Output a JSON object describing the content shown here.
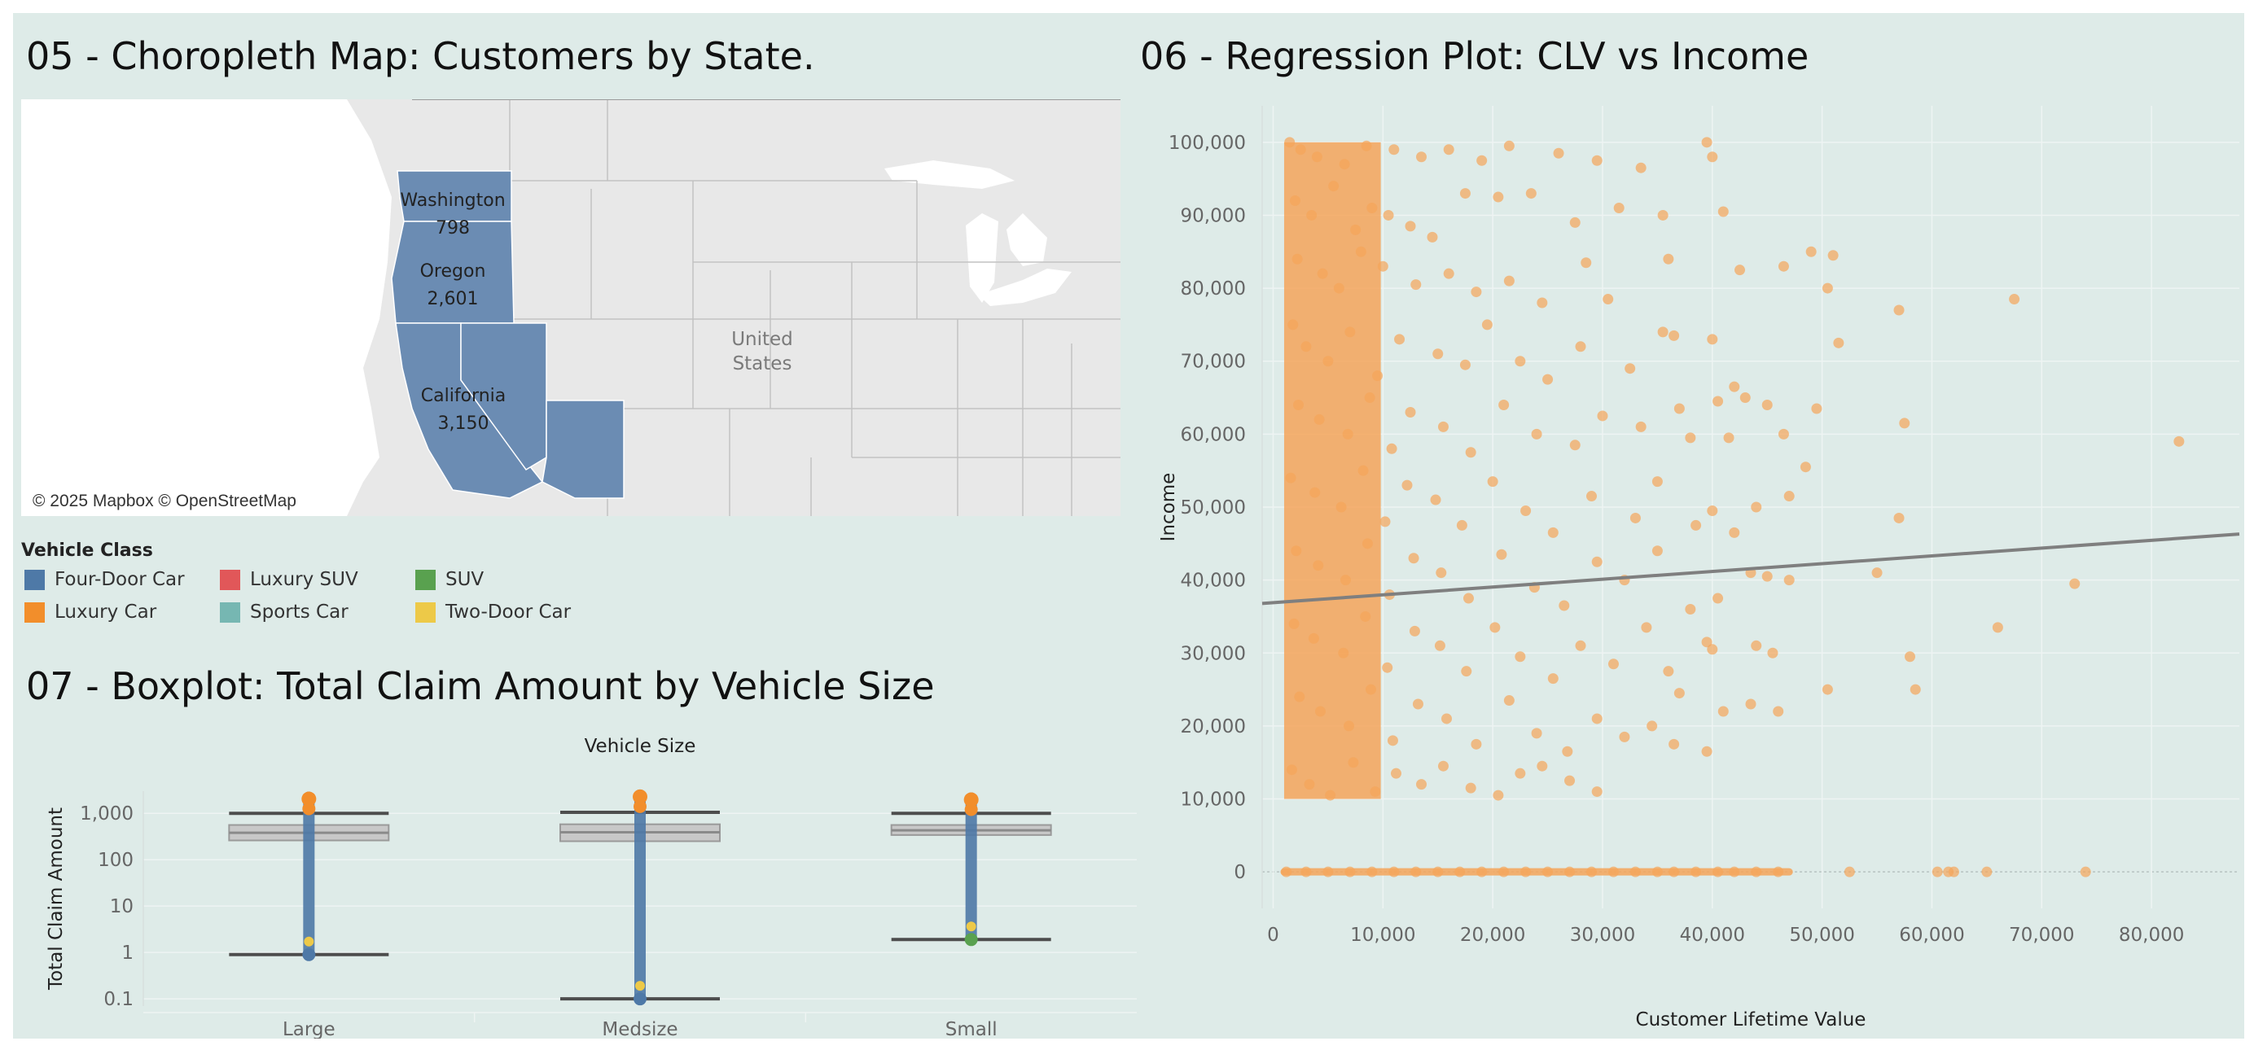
{
  "dashboard": {
    "map_title": "05 - Choropleth Map: Customers by State.",
    "regression_title": "06 - Regression Plot: CLV vs Income",
    "boxplot_title": "07 - Boxplot: Total Claim Amount by Vehicle Size"
  },
  "map": {
    "credit": "© 2025 Mapbox © OpenStreetMap",
    "country_label": "United States",
    "fill_color": "#6b8cb3",
    "states": [
      {
        "name": "Washington",
        "value": "798"
      },
      {
        "name": "Oregon",
        "value": "2,601"
      },
      {
        "name": "California",
        "value": "3,150"
      }
    ]
  },
  "legend": {
    "title": "Vehicle Class",
    "items": [
      {
        "label": "Four-Door Car",
        "color": "#4e79a7"
      },
      {
        "label": "Luxury Car",
        "color": "#f28e2b"
      },
      {
        "label": "Luxury SUV",
        "color": "#e15759"
      },
      {
        "label": "Sports Car",
        "color": "#76b7b2"
      },
      {
        "label": "SUV",
        "color": "#59a14f"
      },
      {
        "label": "Two-Door Car",
        "color": "#edc948"
      }
    ]
  },
  "chart_data": [
    {
      "type": "scatter",
      "title": "06 - Regression Plot: CLV vs Income",
      "xlabel": "Customer Lifetime Value",
      "ylabel": "Income",
      "xlim": [
        -1000,
        88000
      ],
      "ylim": [
        -5000,
        105000
      ],
      "xticks": [
        "0",
        "10,000",
        "20,000",
        "30,000",
        "40,000",
        "50,000",
        "60,000",
        "70,000",
        "80,000"
      ],
      "yticks": [
        "0",
        "10,000",
        "20,000",
        "30,000",
        "40,000",
        "50,000",
        "60,000",
        "70,000",
        "80,000",
        "90,000",
        "100,000"
      ],
      "point_color": "#f5a55a",
      "trend_color": "#7f7f7f",
      "trend_line": {
        "x": [
          -1000,
          88000
        ],
        "y": [
          36800,
          46300
        ]
      },
      "points": [
        [
          1500,
          100000
        ],
        [
          2500,
          99000
        ],
        [
          4000,
          98000
        ],
        [
          6500,
          97000
        ],
        [
          8500,
          99500
        ],
        [
          11000,
          99000
        ],
        [
          13500,
          98000
        ],
        [
          16000,
          99000
        ],
        [
          19000,
          97500
        ],
        [
          21500,
          99500
        ],
        [
          26000,
          98500
        ],
        [
          29500,
          97500
        ],
        [
          33500,
          96500
        ],
        [
          39500,
          100000
        ],
        [
          40000,
          98000
        ],
        [
          2000,
          92000
        ],
        [
          3500,
          90000
        ],
        [
          5500,
          94000
        ],
        [
          7500,
          88000
        ],
        [
          9000,
          91000
        ],
        [
          10500,
          90000
        ],
        [
          12500,
          88500
        ],
        [
          14500,
          87000
        ],
        [
          17500,
          93000
        ],
        [
          20500,
          92500
        ],
        [
          23500,
          93000
        ],
        [
          27500,
          89000
        ],
        [
          31500,
          91000
        ],
        [
          35500,
          90000
        ],
        [
          41000,
          90500
        ],
        [
          2200,
          84000
        ],
        [
          4500,
          82000
        ],
        [
          6000,
          80000
        ],
        [
          8000,
          85000
        ],
        [
          10000,
          83000
        ],
        [
          13000,
          80500
        ],
        [
          16000,
          82000
        ],
        [
          18500,
          79500
        ],
        [
          21500,
          81000
        ],
        [
          24500,
          78000
        ],
        [
          28500,
          83500
        ],
        [
          30500,
          78500
        ],
        [
          36000,
          84000
        ],
        [
          42500,
          82500
        ],
        [
          46500,
          83000
        ],
        [
          49000,
          85000
        ],
        [
          50500,
          80000
        ],
        [
          51000,
          84500
        ],
        [
          51500,
          72500
        ],
        [
          57000,
          77000
        ],
        [
          67500,
          78500
        ],
        [
          1800,
          75000
        ],
        [
          3000,
          72000
        ],
        [
          5000,
          70000
        ],
        [
          7000,
          74000
        ],
        [
          9500,
          68000
        ],
        [
          11500,
          73000
        ],
        [
          15000,
          71000
        ],
        [
          17500,
          69500
        ],
        [
          19500,
          75000
        ],
        [
          22500,
          70000
        ],
        [
          25000,
          67500
        ],
        [
          28000,
          72000
        ],
        [
          32500,
          69000
        ],
        [
          35500,
          74000
        ],
        [
          36500,
          73500
        ],
        [
          40000,
          73000
        ],
        [
          42000,
          66500
        ],
        [
          43000,
          65000
        ],
        [
          2300,
          64000
        ],
        [
          4200,
          62000
        ],
        [
          6800,
          60000
        ],
        [
          8800,
          65000
        ],
        [
          10800,
          58000
        ],
        [
          12500,
          63000
        ],
        [
          15500,
          61000
        ],
        [
          18000,
          57500
        ],
        [
          21000,
          64000
        ],
        [
          24000,
          60000
        ],
        [
          27500,
          58500
        ],
        [
          30000,
          62500
        ],
        [
          33500,
          61000
        ],
        [
          37000,
          63500
        ],
        [
          38000,
          59500
        ],
        [
          40500,
          64500
        ],
        [
          41500,
          59500
        ],
        [
          45000,
          64000
        ],
        [
          46500,
          60000
        ],
        [
          48500,
          55500
        ],
        [
          49500,
          63500
        ],
        [
          57500,
          61500
        ],
        [
          82500,
          59000
        ],
        [
          1600,
          54000
        ],
        [
          3800,
          52000
        ],
        [
          6200,
          50000
        ],
        [
          8200,
          55000
        ],
        [
          10200,
          48000
        ],
        [
          12200,
          53000
        ],
        [
          14800,
          51000
        ],
        [
          17200,
          47500
        ],
        [
          20000,
          53500
        ],
        [
          23000,
          49500
        ],
        [
          25500,
          46500
        ],
        [
          29000,
          51500
        ],
        [
          33000,
          48500
        ],
        [
          35000,
          53500
        ],
        [
          38500,
          47500
        ],
        [
          40000,
          49500
        ],
        [
          42000,
          46500
        ],
        [
          44000,
          50000
        ],
        [
          47000,
          51500
        ],
        [
          57000,
          48500
        ],
        [
          2100,
          44000
        ],
        [
          4100,
          42000
        ],
        [
          6600,
          40000
        ],
        [
          8600,
          45000
        ],
        [
          10600,
          38000
        ],
        [
          12800,
          43000
        ],
        [
          15300,
          41000
        ],
        [
          17800,
          37500
        ],
        [
          20800,
          43500
        ],
        [
          23800,
          39000
        ],
        [
          26500,
          36500
        ],
        [
          29500,
          42500
        ],
        [
          32000,
          40000
        ],
        [
          35000,
          44000
        ],
        [
          38000,
          36000
        ],
        [
          40500,
          37500
        ],
        [
          43500,
          41000
        ],
        [
          45000,
          40500
        ],
        [
          47000,
          40000
        ],
        [
          55000,
          41000
        ],
        [
          73000,
          39500
        ],
        [
          1900,
          34000
        ],
        [
          3700,
          32000
        ],
        [
          6400,
          30000
        ],
        [
          8400,
          35000
        ],
        [
          10400,
          28000
        ],
        [
          12900,
          33000
        ],
        [
          15200,
          31000
        ],
        [
          17600,
          27500
        ],
        [
          20200,
          33500
        ],
        [
          22500,
          29500
        ],
        [
          25500,
          26500
        ],
        [
          28000,
          31000
        ],
        [
          31000,
          28500
        ],
        [
          34000,
          33500
        ],
        [
          36000,
          27500
        ],
        [
          39500,
          31500
        ],
        [
          40000,
          30500
        ],
        [
          44000,
          31000
        ],
        [
          45500,
          30000
        ],
        [
          58000,
          29500
        ],
        [
          66000,
          33500
        ],
        [
          2400,
          24000
        ],
        [
          4300,
          22000
        ],
        [
          6900,
          20000
        ],
        [
          8900,
          25000
        ],
        [
          10900,
          18000
        ],
        [
          13200,
          23000
        ],
        [
          15800,
          21000
        ],
        [
          18500,
          17500
        ],
        [
          21500,
          23500
        ],
        [
          24000,
          19000
        ],
        [
          26800,
          16500
        ],
        [
          29500,
          21000
        ],
        [
          32000,
          18500
        ],
        [
          34500,
          20000
        ],
        [
          36500,
          17500
        ],
        [
          37000,
          24500
        ],
        [
          39500,
          16500
        ],
        [
          41000,
          22000
        ],
        [
          43500,
          23000
        ],
        [
          46000,
          22000
        ],
        [
          50500,
          25000
        ],
        [
          58500,
          25000
        ],
        [
          1700,
          14000
        ],
        [
          3300,
          12000
        ],
        [
          5200,
          10500
        ],
        [
          7300,
          15000
        ],
        [
          9300,
          11000
        ],
        [
          11200,
          13500
        ],
        [
          13500,
          12000
        ],
        [
          15500,
          14500
        ],
        [
          18000,
          11500
        ],
        [
          20500,
          10500
        ],
        [
          22500,
          13500
        ],
        [
          24500,
          14500
        ],
        [
          27000,
          12500
        ],
        [
          29500,
          11000
        ],
        [
          1200,
          0
        ],
        [
          3000,
          0
        ],
        [
          5000,
          0
        ],
        [
          7000,
          0
        ],
        [
          9000,
          0
        ],
        [
          11000,
          0
        ],
        [
          13000,
          0
        ],
        [
          15000,
          0
        ],
        [
          17000,
          0
        ],
        [
          19000,
          0
        ],
        [
          21000,
          0
        ],
        [
          23000,
          0
        ],
        [
          25000,
          0
        ],
        [
          27000,
          0
        ],
        [
          29000,
          0
        ],
        [
          31000,
          0
        ],
        [
          33000,
          0
        ],
        [
          35000,
          0
        ],
        [
          36500,
          0
        ],
        [
          38500,
          0
        ],
        [
          40500,
          0
        ],
        [
          42000,
          0
        ],
        [
          44000,
          0
        ],
        [
          46000,
          0
        ],
        [
          52500,
          0
        ],
        [
          60500,
          0
        ],
        [
          61500,
          0
        ],
        [
          62000,
          0
        ],
        [
          65000,
          0
        ],
        [
          74000,
          0
        ]
      ]
    },
    {
      "type": "box",
      "title": "07 - Boxplot: Total Claim Amount by Vehicle Size",
      "xlabel": "Vehicle Size",
      "ylabel": "Total Claim Amount",
      "yscale": "log",
      "ylim": [
        0.07,
        3000
      ],
      "yticks": [
        "0.1",
        "1",
        "10",
        "100",
        "1,000"
      ],
      "box_color": "#c8c8c8",
      "whisker_color": "#4d4d4d",
      "groups": [
        {
          "category": "Large",
          "low": 0.9,
          "q1": 260,
          "median": 380,
          "q3": 560,
          "high": 1000,
          "min": 0.9,
          "max": 2600
        },
        {
          "category": "Medsize",
          "low": 0.1,
          "q1": 250,
          "median": 390,
          "q3": 580,
          "high": 1050,
          "min": 0.1,
          "max": 2900
        },
        {
          "category": "Small",
          "low": 1.9,
          "q1": 340,
          "median": 430,
          "q3": 560,
          "high": 1000,
          "min": 1.9,
          "max": 2500
        }
      ]
    }
  ]
}
